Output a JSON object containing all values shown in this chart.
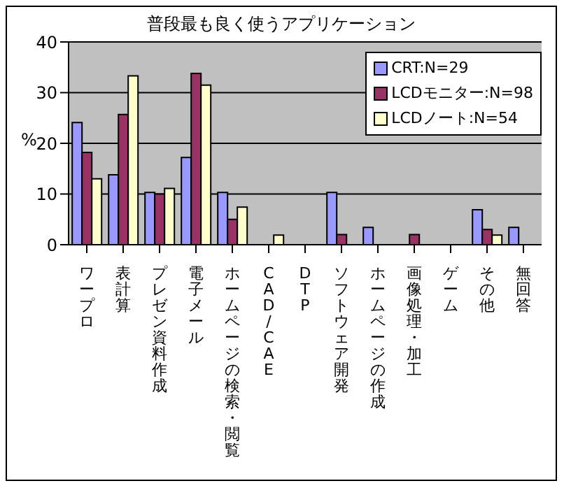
{
  "chart_data": {
    "type": "bar",
    "title": "普段最も良く使うアプリケーション",
    "ylabel": "%",
    "categories": [
      "ワープロ",
      "表計算",
      "プレゼン資料作成",
      "電子メール",
      "ホームページの検索・閲覧",
      "CAD/CAE",
      "DTP",
      "ソフトウェア開発",
      "ホームページの作成",
      "画像処理・加工",
      "ゲーム",
      "その他",
      "無回答"
    ],
    "series": [
      {
        "name": "CRT:N=29",
        "color": "#9999ff",
        "values": [
          24.1,
          13.8,
          10.3,
          17.2,
          10.3,
          0,
          0,
          10.3,
          3.4,
          0,
          0,
          6.9,
          3.4
        ]
      },
      {
        "name": "LCDモニター:N=98",
        "color": "#993366",
        "values": [
          18.2,
          25.7,
          10,
          33.8,
          5,
          0,
          0,
          2,
          0,
          2,
          0,
          3,
          0
        ]
      },
      {
        "name": "LCDノート:N=54",
        "color": "#ffffcc",
        "values": [
          13,
          33.3,
          11.1,
          31.5,
          7.4,
          1.9,
          0,
          0,
          0,
          0,
          0,
          1.9,
          0
        ]
      }
    ],
    "ylim": [
      0,
      40
    ],
    "yticks": [
      0,
      10,
      20,
      30,
      40
    ],
    "grid": "y",
    "legend": "top right"
  }
}
